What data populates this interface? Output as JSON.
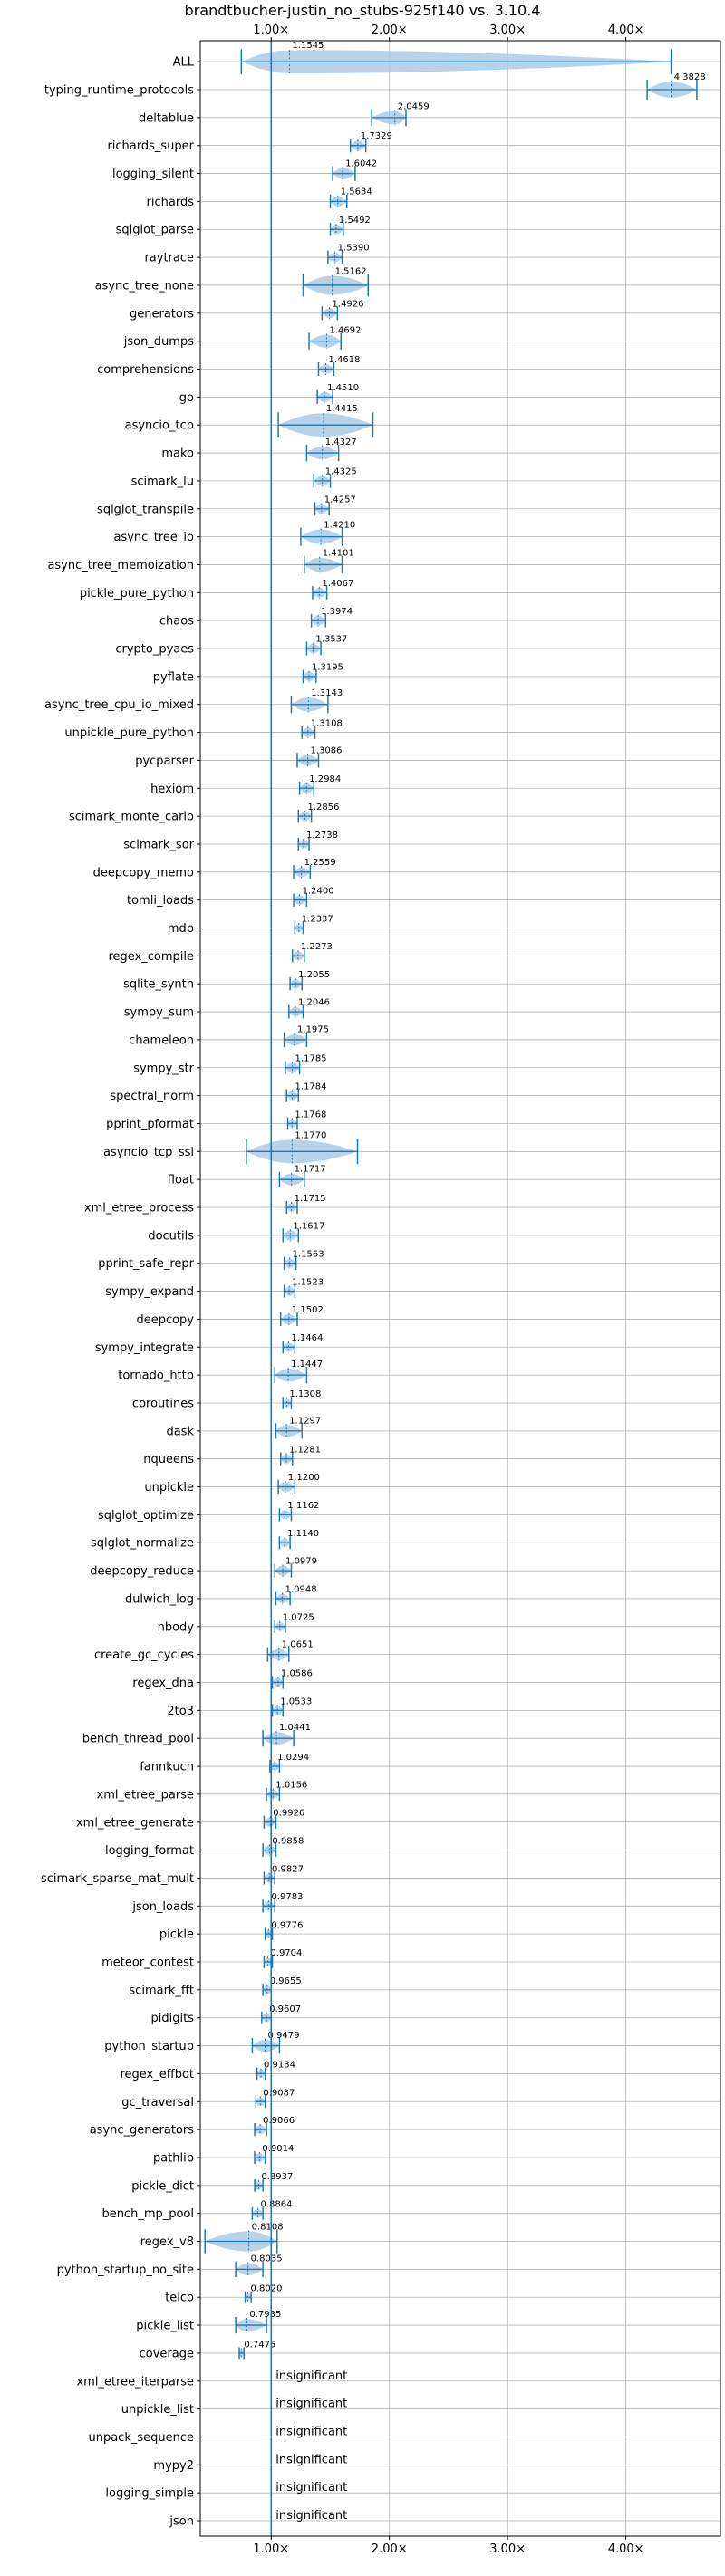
{
  "chart_data": {
    "type": "violin",
    "orientation": "horizontal",
    "title": "brandtbucher-justin_no_stubs-925f140 vs. 3.10.4",
    "xlabel": "",
    "ylabel": "",
    "xlim": [
      0.4,
      4.8
    ],
    "xticks": [
      {
        "value": 1.0,
        "label": "1.00×"
      },
      {
        "value": 2.0,
        "label": "2.00×"
      },
      {
        "value": 3.0,
        "label": "3.00×"
      },
      {
        "value": 4.0,
        "label": "4.00×"
      }
    ],
    "reference_line": 1.0,
    "grid": true,
    "insignificant_label": "insignificant",
    "colors": {
      "violin": "#a9cbe6",
      "line": "#1f77b4",
      "grid": "#b0b0b0"
    },
    "benchmarks": [
      {
        "name": "ALL",
        "value": 1.1545,
        "label": "1.1545",
        "min": 0.7475,
        "max": 4.3828
      },
      {
        "name": "typing_runtime_protocols",
        "value": 4.3828,
        "label": "4.3828",
        "min": 4.18,
        "max": 4.6
      },
      {
        "name": "deltablue",
        "value": 2.0459,
        "label": "2.0459",
        "min": 1.85,
        "max": 2.14
      },
      {
        "name": "richards_super",
        "value": 1.7329,
        "label": "1.7329",
        "min": 1.67,
        "max": 1.8
      },
      {
        "name": "logging_silent",
        "value": 1.6042,
        "label": "1.6042",
        "min": 1.52,
        "max": 1.71
      },
      {
        "name": "richards",
        "value": 1.5634,
        "label": "1.5634",
        "min": 1.5,
        "max": 1.64
      },
      {
        "name": "sqlglot_parse",
        "value": 1.5492,
        "label": "1.5492",
        "min": 1.5,
        "max": 1.61
      },
      {
        "name": "raytrace",
        "value": 1.539,
        "label": "1.5390",
        "min": 1.48,
        "max": 1.6
      },
      {
        "name": "async_tree_none",
        "value": 1.5162,
        "label": "1.5162",
        "min": 1.27,
        "max": 1.82
      },
      {
        "name": "generators",
        "value": 1.4926,
        "label": "1.4926",
        "min": 1.43,
        "max": 1.56
      },
      {
        "name": "json_dumps",
        "value": 1.4692,
        "label": "1.4692",
        "min": 1.32,
        "max": 1.59
      },
      {
        "name": "comprehensions",
        "value": 1.4618,
        "label": "1.4618",
        "min": 1.4,
        "max": 1.53
      },
      {
        "name": "go",
        "value": 1.451,
        "label": "1.4510",
        "min": 1.39,
        "max": 1.52
      },
      {
        "name": "asyncio_tcp",
        "value": 1.4415,
        "label": "1.4415",
        "min": 1.06,
        "max": 1.86
      },
      {
        "name": "mako",
        "value": 1.4327,
        "label": "1.4327",
        "min": 1.3,
        "max": 1.57
      },
      {
        "name": "scimark_lu",
        "value": 1.4325,
        "label": "1.4325",
        "min": 1.36,
        "max": 1.5
      },
      {
        "name": "sqlglot_transpile",
        "value": 1.4257,
        "label": "1.4257",
        "min": 1.37,
        "max": 1.49
      },
      {
        "name": "async_tree_io",
        "value": 1.421,
        "label": "1.4210",
        "min": 1.25,
        "max": 1.6
      },
      {
        "name": "async_tree_memoization",
        "value": 1.4101,
        "label": "1.4101",
        "min": 1.28,
        "max": 1.6
      },
      {
        "name": "pickle_pure_python",
        "value": 1.4067,
        "label": "1.4067",
        "min": 1.35,
        "max": 1.47
      },
      {
        "name": "chaos",
        "value": 1.3974,
        "label": "1.3974",
        "min": 1.34,
        "max": 1.46
      },
      {
        "name": "crypto_pyaes",
        "value": 1.3537,
        "label": "1.3537",
        "min": 1.3,
        "max": 1.42
      },
      {
        "name": "pyflate",
        "value": 1.3195,
        "label": "1.3195",
        "min": 1.27,
        "max": 1.38
      },
      {
        "name": "async_tree_cpu_io_mixed",
        "value": 1.3143,
        "label": "1.3143",
        "min": 1.17,
        "max": 1.48
      },
      {
        "name": "unpickle_pure_python",
        "value": 1.3108,
        "label": "1.3108",
        "min": 1.26,
        "max": 1.37
      },
      {
        "name": "pycparser",
        "value": 1.3086,
        "label": "1.3086",
        "min": 1.22,
        "max": 1.4
      },
      {
        "name": "hexiom",
        "value": 1.2984,
        "label": "1.2984",
        "min": 1.24,
        "max": 1.36
      },
      {
        "name": "scimark_monte_carlo",
        "value": 1.2856,
        "label": "1.2856",
        "min": 1.23,
        "max": 1.34
      },
      {
        "name": "scimark_sor",
        "value": 1.2738,
        "label": "1.2738",
        "min": 1.23,
        "max": 1.32
      },
      {
        "name": "deepcopy_memo",
        "value": 1.2559,
        "label": "1.2559",
        "min": 1.19,
        "max": 1.33
      },
      {
        "name": "tomli_loads",
        "value": 1.24,
        "label": "1.2400",
        "min": 1.19,
        "max": 1.3
      },
      {
        "name": "mdp",
        "value": 1.2337,
        "label": "1.2337",
        "min": 1.2,
        "max": 1.27
      },
      {
        "name": "regex_compile",
        "value": 1.2273,
        "label": "1.2273",
        "min": 1.18,
        "max": 1.28
      },
      {
        "name": "sqlite_synth",
        "value": 1.2055,
        "label": "1.2055",
        "min": 1.16,
        "max": 1.26
      },
      {
        "name": "sympy_sum",
        "value": 1.2046,
        "label": "1.2046",
        "min": 1.15,
        "max": 1.27
      },
      {
        "name": "chameleon",
        "value": 1.1975,
        "label": "1.1975",
        "min": 1.11,
        "max": 1.3
      },
      {
        "name": "sympy_str",
        "value": 1.1785,
        "label": "1.1785",
        "min": 1.12,
        "max": 1.24
      },
      {
        "name": "spectral_norm",
        "value": 1.1784,
        "label": "1.1784",
        "min": 1.13,
        "max": 1.23
      },
      {
        "name": "pprint_pformat",
        "value": 1.1768,
        "label": "1.1768",
        "min": 1.14,
        "max": 1.22
      },
      {
        "name": "asyncio_tcp_ssl",
        "value": 1.177,
        "label": "1.1770",
        "min": 0.79,
        "max": 1.73
      },
      {
        "name": "float",
        "value": 1.1717,
        "label": "1.1717",
        "min": 1.07,
        "max": 1.28
      },
      {
        "name": "xml_etree_process",
        "value": 1.1715,
        "label": "1.1715",
        "min": 1.13,
        "max": 1.22
      },
      {
        "name": "docutils",
        "value": 1.1617,
        "label": "1.1617",
        "min": 1.1,
        "max": 1.23
      },
      {
        "name": "pprint_safe_repr",
        "value": 1.1563,
        "label": "1.1563",
        "min": 1.11,
        "max": 1.21
      },
      {
        "name": "sympy_expand",
        "value": 1.1523,
        "label": "1.1523",
        "min": 1.11,
        "max": 1.2
      },
      {
        "name": "deepcopy",
        "value": 1.1502,
        "label": "1.1502",
        "min": 1.08,
        "max": 1.22
      },
      {
        "name": "sympy_integrate",
        "value": 1.1464,
        "label": "1.1464",
        "min": 1.1,
        "max": 1.2
      },
      {
        "name": "tornado_http",
        "value": 1.1447,
        "label": "1.1447",
        "min": 1.03,
        "max": 1.3
      },
      {
        "name": "coroutines",
        "value": 1.1308,
        "label": "1.1308",
        "min": 1.1,
        "max": 1.17
      },
      {
        "name": "dask",
        "value": 1.1297,
        "label": "1.1297",
        "min": 1.04,
        "max": 1.26
      },
      {
        "name": "nqueens",
        "value": 1.1281,
        "label": "1.1281",
        "min": 1.08,
        "max": 1.18
      },
      {
        "name": "unpickle",
        "value": 1.12,
        "label": "1.1200",
        "min": 1.06,
        "max": 1.2
      },
      {
        "name": "sqlglot_optimize",
        "value": 1.1162,
        "label": "1.1162",
        "min": 1.07,
        "max": 1.17
      },
      {
        "name": "sqlglot_normalize",
        "value": 1.114,
        "label": "1.1140",
        "min": 1.07,
        "max": 1.16
      },
      {
        "name": "deepcopy_reduce",
        "value": 1.0979,
        "label": "1.0979",
        "min": 1.03,
        "max": 1.17
      },
      {
        "name": "dulwich_log",
        "value": 1.0948,
        "label": "1.0948",
        "min": 1.04,
        "max": 1.16
      },
      {
        "name": "nbody",
        "value": 1.0725,
        "label": "1.0725",
        "min": 1.03,
        "max": 1.12
      },
      {
        "name": "create_gc_cycles",
        "value": 1.0651,
        "label": "1.0651",
        "min": 0.97,
        "max": 1.15
      },
      {
        "name": "regex_dna",
        "value": 1.0586,
        "label": "1.0586",
        "min": 1.01,
        "max": 1.1
      },
      {
        "name": "2to3",
        "value": 1.0533,
        "label": "1.0533",
        "min": 1.01,
        "max": 1.1
      },
      {
        "name": "bench_thread_pool",
        "value": 1.0441,
        "label": "1.0441",
        "min": 0.93,
        "max": 1.19
      },
      {
        "name": "fannkuch",
        "value": 1.0294,
        "label": "1.0294",
        "min": 0.99,
        "max": 1.07
      },
      {
        "name": "xml_etree_parse",
        "value": 1.0156,
        "label": "1.0156",
        "min": 0.96,
        "max": 1.07
      },
      {
        "name": "xml_etree_generate",
        "value": 0.9926,
        "label": "0.9926",
        "min": 0.94,
        "max": 1.04
      },
      {
        "name": "logging_format",
        "value": 0.9858,
        "label": "0.9858",
        "min": 0.93,
        "max": 1.04
      },
      {
        "name": "scimark_sparse_mat_mult",
        "value": 0.9827,
        "label": "0.9827",
        "min": 0.94,
        "max": 1.03
      },
      {
        "name": "json_loads",
        "value": 0.9783,
        "label": "0.9783",
        "min": 0.93,
        "max": 1.03
      },
      {
        "name": "pickle",
        "value": 0.9776,
        "label": "0.9776",
        "min": 0.95,
        "max": 1.01
      },
      {
        "name": "meteor_contest",
        "value": 0.9704,
        "label": "0.9704",
        "min": 0.94,
        "max": 1.01
      },
      {
        "name": "scimark_fft",
        "value": 0.9655,
        "label": "0.9655",
        "min": 0.93,
        "max": 1.0
      },
      {
        "name": "pidigits",
        "value": 0.9607,
        "label": "0.9607",
        "min": 0.92,
        "max": 1.0
      },
      {
        "name": "python_startup",
        "value": 0.9479,
        "label": "0.9479",
        "min": 0.84,
        "max": 1.07
      },
      {
        "name": "regex_effbot",
        "value": 0.9134,
        "label": "0.9134",
        "min": 0.88,
        "max": 0.95
      },
      {
        "name": "gc_traversal",
        "value": 0.9087,
        "label": "0.9087",
        "min": 0.87,
        "max": 0.95
      },
      {
        "name": "async_generators",
        "value": 0.9066,
        "label": "0.9066",
        "min": 0.86,
        "max": 0.96
      },
      {
        "name": "pathlib",
        "value": 0.9014,
        "label": "0.9014",
        "min": 0.86,
        "max": 0.95
      },
      {
        "name": "pickle_dict",
        "value": 0.8937,
        "label": "0.8937",
        "min": 0.86,
        "max": 0.93
      },
      {
        "name": "bench_mp_pool",
        "value": 0.8864,
        "label": "0.8864",
        "min": 0.84,
        "max": 0.93
      },
      {
        "name": "regex_v8",
        "value": 0.8108,
        "label": "0.8108",
        "min": 0.44,
        "max": 1.05
      },
      {
        "name": "python_startup_no_site",
        "value": 0.8035,
        "label": "0.8035",
        "min": 0.7,
        "max": 0.93
      },
      {
        "name": "telco",
        "value": 0.802,
        "label": "0.8020",
        "min": 0.78,
        "max": 0.83
      },
      {
        "name": "pickle_list",
        "value": 0.7935,
        "label": "0.7935",
        "min": 0.7,
        "max": 0.96
      },
      {
        "name": "coverage",
        "value": 0.7475,
        "label": "0.7475",
        "min": 0.73,
        "max": 0.77
      },
      {
        "name": "xml_etree_iterparse",
        "value": null,
        "label": "insignificant",
        "insignificant": true
      },
      {
        "name": "unpickle_list",
        "value": null,
        "label": "insignificant",
        "insignificant": true
      },
      {
        "name": "unpack_sequence",
        "value": null,
        "label": "insignificant",
        "insignificant": true
      },
      {
        "name": "mypy2",
        "value": null,
        "label": "insignificant",
        "insignificant": true
      },
      {
        "name": "logging_simple",
        "value": null,
        "label": "insignificant",
        "insignificant": true
      },
      {
        "name": "json",
        "value": null,
        "label": "insignificant",
        "insignificant": true
      }
    ]
  }
}
